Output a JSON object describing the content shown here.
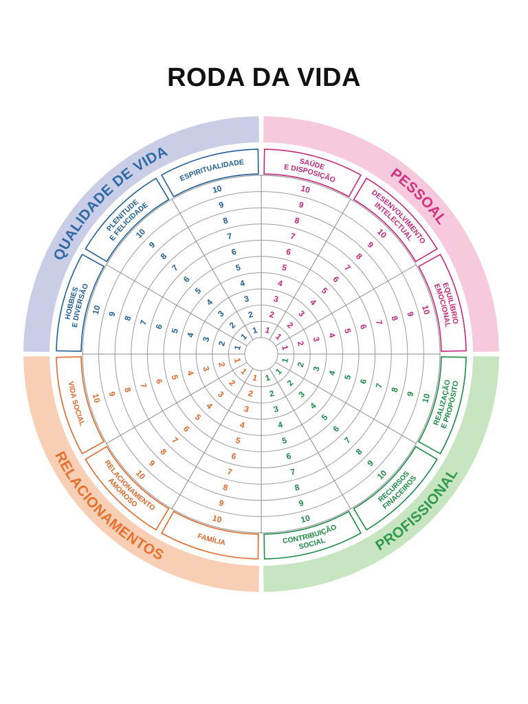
{
  "title": "RODA DA VIDA",
  "quadrants": [
    {
      "key": "qualidade",
      "name": "QUALIDADE DE VIDA",
      "band_color": "#c9cde6",
      "text_color": "#2f6aa6",
      "segment_color": "#1f5d96"
    },
    {
      "key": "pessoal",
      "name": "PESSOAL",
      "band_color": "#f7c9dd",
      "text_color": "#d1317e",
      "segment_color": "#c4267a"
    },
    {
      "key": "profissional",
      "name": "PROFISSIONAL",
      "band_color": "#c8e5c2",
      "text_color": "#2f9a4c",
      "segment_color": "#1b8a44"
    },
    {
      "key": "relacionamentos",
      "name": "RELACIONAMENTOS",
      "band_color": "#f8cfb4",
      "text_color": "#e5712f",
      "segment_color": "#e0692a"
    }
  ],
  "segments": [
    {
      "key": "saude",
      "quadrant": "pessoal",
      "label_lines": [
        "SAÚDE",
        "E DISPOSIÇÃO"
      ]
    },
    {
      "key": "desenvolvimento",
      "quadrant": "pessoal",
      "label_lines": [
        "DESENVOLVIMENTO",
        "INTELECTUAL"
      ]
    },
    {
      "key": "equilibrio",
      "quadrant": "pessoal",
      "label_lines": [
        "EQUILÍBRIO",
        "EMOCIONAL"
      ]
    },
    {
      "key": "realizacao",
      "quadrant": "profissional",
      "label_lines": [
        "REALIZAÇÃO",
        "E PROPÓSITO"
      ]
    },
    {
      "key": "recursos",
      "quadrant": "profissional",
      "label_lines": [
        "RECURSOS",
        "FINACEIROS"
      ]
    },
    {
      "key": "contribuicao",
      "quadrant": "profissional",
      "label_lines": [
        "CONTRIBUIÇÃO",
        "SOCIAL"
      ]
    },
    {
      "key": "familia",
      "quadrant": "relacionamentos",
      "label_lines": [
        "FAMÍLIA"
      ]
    },
    {
      "key": "amoroso",
      "quadrant": "relacionamentos",
      "label_lines": [
        "RELACIONAMENTO",
        "AMOROSO"
      ]
    },
    {
      "key": "vida_social",
      "quadrant": "relacionamentos",
      "label_lines": [
        "VIDA SOCIAL"
      ]
    },
    {
      "key": "hobbies",
      "quadrant": "qualidade",
      "label_lines": [
        "HOBBIES",
        "E DIVERSÃO"
      ]
    },
    {
      "key": "plenitude",
      "quadrant": "qualidade",
      "label_lines": [
        "PLENITUDE",
        "E FELICIDADE"
      ]
    },
    {
      "key": "espiritualidade",
      "quadrant": "qualidade",
      "label_lines": [
        "ESPIRITUALIDADE"
      ]
    }
  ],
  "scale": [
    "1",
    "2",
    "3",
    "4",
    "5",
    "6",
    "7",
    "8",
    "9",
    "10"
  ],
  "colors": {
    "ring_lines": "#9a9a9a",
    "spokes": "#8a8a8a"
  }
}
